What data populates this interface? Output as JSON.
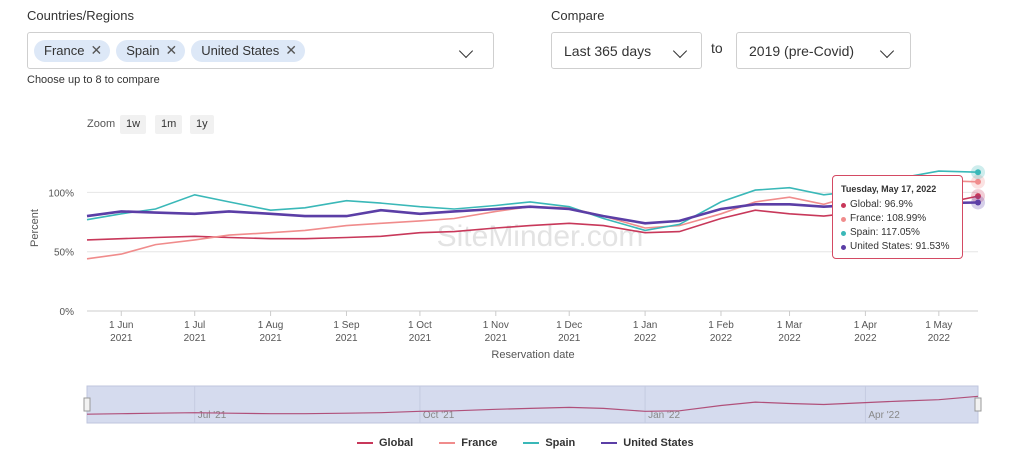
{
  "filters": {
    "countries_label": "Countries/Regions",
    "chips": [
      {
        "label": "France"
      },
      {
        "label": "Spain"
      },
      {
        "label": "United States"
      }
    ],
    "helper": "Choose up to 8 to compare",
    "compare_label": "Compare",
    "period": "Last 365 days",
    "to_label": "to",
    "baseline": "2019 (pre-Covid)"
  },
  "zoom": {
    "label": "Zoom",
    "buttons": [
      "1w",
      "1m",
      "1y"
    ]
  },
  "watermark": "SiteMinder.com",
  "chart_data": {
    "type": "line",
    "ylabel": "Percent",
    "xlabel": "Reservation date",
    "y_ticks": [
      "0%",
      "50%",
      "100%"
    ],
    "ylim": [
      0,
      140
    ],
    "x_ticks": [
      {
        "l1": "1 Jun",
        "l2": "2021"
      },
      {
        "l1": "1 Jul",
        "l2": "2021"
      },
      {
        "l1": "1 Aug",
        "l2": "2021"
      },
      {
        "l1": "1 Sep",
        "l2": "2021"
      },
      {
        "l1": "1 Oct",
        "l2": "2021"
      },
      {
        "l1": "1 Nov",
        "l2": "2021"
      },
      {
        "l1": "1 Dec",
        "l2": "2021"
      },
      {
        "l1": "1 Jan",
        "l2": "2022"
      },
      {
        "l1": "1 Feb",
        "l2": "2022"
      },
      {
        "l1": "1 Mar",
        "l2": "2022"
      },
      {
        "l1": "1 Apr",
        "l2": "2022"
      },
      {
        "l1": "1 May",
        "l2": "2022"
      }
    ],
    "x_dates": [
      "2021-05-18",
      "2021-06-01",
      "2021-06-15",
      "2021-07-01",
      "2021-07-15",
      "2021-08-01",
      "2021-08-15",
      "2021-09-01",
      "2021-09-15",
      "2021-10-01",
      "2021-10-15",
      "2021-11-01",
      "2021-11-15",
      "2021-12-01",
      "2021-12-15",
      "2022-01-01",
      "2022-01-15",
      "2022-02-01",
      "2022-02-15",
      "2022-03-01",
      "2022-03-15",
      "2022-04-01",
      "2022-04-15",
      "2022-05-01",
      "2022-05-17"
    ],
    "series": [
      {
        "name": "Global",
        "color": "#c8385a",
        "values": [
          60,
          61,
          62,
          63,
          62,
          61,
          61,
          62,
          63,
          66,
          67,
          70,
          72,
          74,
          72,
          66,
          67,
          78,
          85,
          82,
          80,
          84,
          87,
          90,
          96.9
        ]
      },
      {
        "name": "France",
        "color": "#f08c8c",
        "values": [
          44,
          48,
          56,
          60,
          64,
          66,
          68,
          72,
          74,
          76,
          78,
          84,
          88,
          87,
          80,
          70,
          72,
          82,
          92,
          96,
          90,
          100,
          104,
          110,
          108.99
        ]
      },
      {
        "name": "Spain",
        "color": "#3ab8b8",
        "values": [
          77,
          82,
          86,
          98,
          92,
          85,
          87,
          93,
          91,
          88,
          86,
          89,
          92,
          88,
          78,
          68,
          73,
          92,
          102,
          104,
          98,
          102,
          112,
          118,
          117.05
        ]
      },
      {
        "name": "United States",
        "color": "#5b3ea6",
        "values": [
          80,
          84,
          83,
          82,
          84,
          82,
          80,
          80,
          85,
          82,
          84,
          86,
          88,
          86,
          80,
          74,
          76,
          86,
          90,
          90,
          88,
          90,
          92,
          91,
          91.53
        ]
      }
    ],
    "tooltip": {
      "date": "Tuesday, May 17, 2022",
      "rows": [
        "Global: 96.9%",
        "France: 108.99%",
        "Spain: 117.05%",
        "United States: 91.53%"
      ]
    },
    "navigator_labels": [
      "Jul '21",
      "Oct '21",
      "Jan '22",
      "Apr '22"
    ]
  },
  "legend": [
    "Global",
    "France",
    "Spain",
    "United States"
  ]
}
